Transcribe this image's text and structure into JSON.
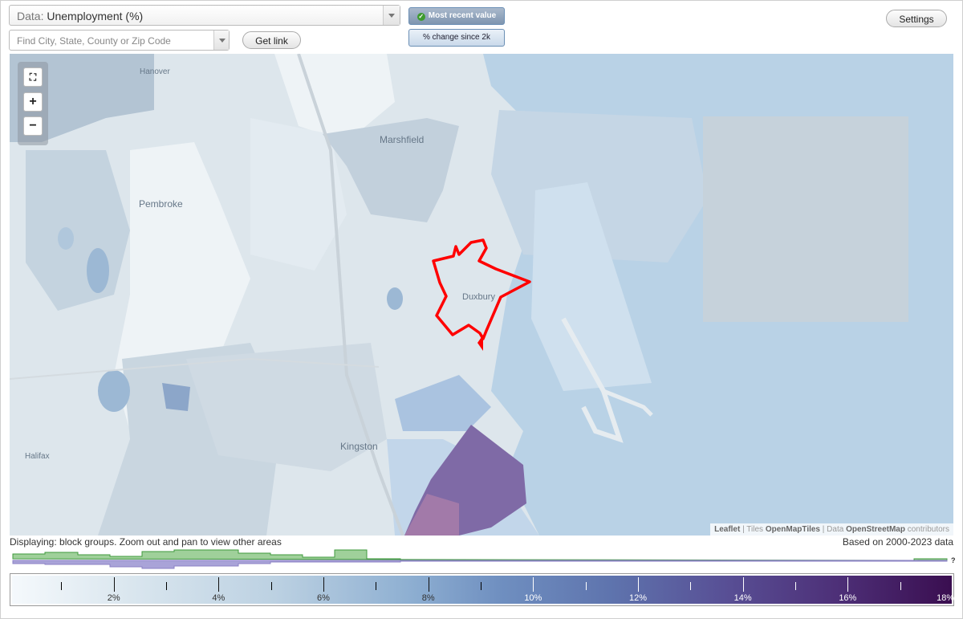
{
  "controls": {
    "data_label": "Data:",
    "data_value": "Unemployment (%)",
    "find_placeholder": "Find City, State, County or Zip Code",
    "get_link": "Get link",
    "most_recent": "Most recent value",
    "pct_change": "% change since 2k",
    "settings": "Settings"
  },
  "map": {
    "places": [
      "Hanover",
      "Marshfield",
      "Pembroke",
      "Duxbury",
      "Kingston",
      "Halifax"
    ],
    "attribution": {
      "leaflet": "Leaflet",
      "sep1": " | Tiles ",
      "tiles": "OpenMapTiles",
      "sep2": " | Data ",
      "osm": "OpenStreetMap",
      "tail": " contributors"
    },
    "selected_outline_color": "#ff0000",
    "water_color": "#b9d2e6"
  },
  "info": {
    "displaying": "Displaying: block groups. Zoom out and pan to view other areas",
    "based_on": "Based on 2000-2023 data",
    "histogram_marker": "?"
  },
  "legend": {
    "labels": [
      "2%",
      "4%",
      "6%",
      "8%",
      "10%",
      "12%",
      "14%",
      "16%",
      "18%"
    ],
    "min": 0,
    "max": 18,
    "colors": [
      "#f5f9fc",
      "#bcd1e2",
      "#6f8fc0",
      "#584f95",
      "#3a0e50"
    ]
  }
}
